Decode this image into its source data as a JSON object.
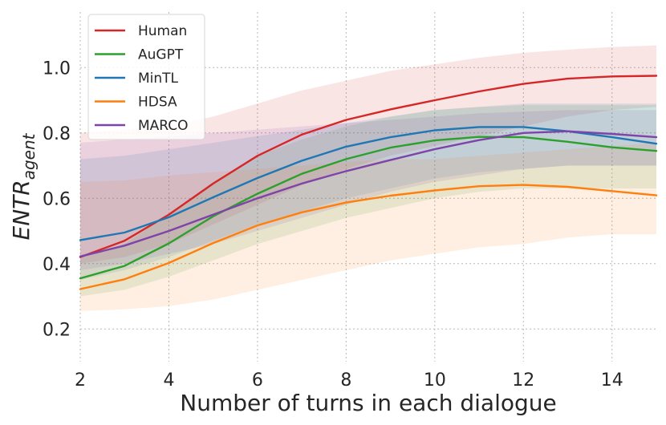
{
  "chart_data": {
    "type": "line",
    "xlabel": "Number of turns in each dialogue",
    "ylabel_main": "ENTR",
    "ylabel_sub": "agent",
    "xlim": [
      2,
      15
    ],
    "ylim": [
      0.1,
      1.17
    ],
    "x_ticks": [
      2,
      4,
      6,
      8,
      10,
      12,
      14
    ],
    "x_tick_labels": [
      "2",
      "4",
      "6",
      "8",
      "10",
      "12",
      "14"
    ],
    "y_ticks": [
      0.2,
      0.4,
      0.6,
      0.8,
      1.0
    ],
    "y_tick_labels": [
      "0.2",
      "0.4",
      "0.6",
      "0.8",
      "1.0"
    ],
    "grid": true,
    "legend_position": "top-left",
    "x": [
      2,
      3,
      4,
      5,
      6,
      7,
      8,
      9,
      10,
      11,
      12,
      13,
      14,
      15
    ],
    "series": [
      {
        "name": "Human",
        "color": "#d62728",
        "values": [
          0.42,
          0.47,
          0.55,
          0.645,
          0.73,
          0.795,
          0.84,
          0.872,
          0.9,
          0.927,
          0.95,
          0.966,
          0.973,
          0.975
        ],
        "band_lower": [
          0.4,
          0.42,
          0.46,
          0.52,
          0.58,
          0.64,
          0.69,
          0.73,
          0.76,
          0.79,
          0.82,
          0.85,
          0.87,
          0.88
        ],
        "band_upper": [
          0.8,
          0.81,
          0.82,
          0.85,
          0.89,
          0.93,
          0.96,
          0.99,
          1.01,
          1.03,
          1.045,
          1.055,
          1.063,
          1.068
        ]
      },
      {
        "name": "AuGPT",
        "color": "#2ca02c",
        "values": [
          0.355,
          0.393,
          0.462,
          0.545,
          0.614,
          0.675,
          0.72,
          0.755,
          0.777,
          0.788,
          0.787,
          0.773,
          0.756,
          0.745
        ],
        "band_lower": [
          0.3,
          0.32,
          0.36,
          0.41,
          0.46,
          0.5,
          0.54,
          0.57,
          0.6,
          0.62,
          0.63,
          0.63,
          0.63,
          0.63
        ],
        "band_upper": [
          0.42,
          0.46,
          0.55,
          0.65,
          0.73,
          0.78,
          0.82,
          0.85,
          0.87,
          0.88,
          0.885,
          0.885,
          0.885,
          0.885
        ]
      },
      {
        "name": "MinTL",
        "color": "#1f77b4",
        "values": [
          0.472,
          0.495,
          0.542,
          0.603,
          0.662,
          0.715,
          0.758,
          0.787,
          0.808,
          0.818,
          0.818,
          0.805,
          0.787,
          0.767
        ],
        "band_lower": [
          0.35,
          0.38,
          0.42,
          0.47,
          0.52,
          0.56,
          0.6,
          0.63,
          0.66,
          0.68,
          0.69,
          0.7,
          0.7,
          0.7
        ],
        "band_upper": [
          0.72,
          0.73,
          0.75,
          0.77,
          0.79,
          0.81,
          0.83,
          0.85,
          0.87,
          0.88,
          0.89,
          0.89,
          0.89,
          0.89
        ]
      },
      {
        "name": "HDSA",
        "color": "#ff7f0e",
        "values": [
          0.322,
          0.352,
          0.402,
          0.463,
          0.517,
          0.557,
          0.587,
          0.608,
          0.624,
          0.637,
          0.641,
          0.635,
          0.622,
          0.609
        ],
        "band_lower": [
          0.255,
          0.26,
          0.27,
          0.29,
          0.32,
          0.35,
          0.38,
          0.41,
          0.43,
          0.45,
          0.46,
          0.48,
          0.49,
          0.49
        ],
        "band_upper": [
          0.65,
          0.655,
          0.67,
          0.68,
          0.69,
          0.7,
          0.71,
          0.72,
          0.72,
          0.73,
          0.74,
          0.75,
          0.76,
          0.77
        ]
      },
      {
        "name": "MARCO",
        "color": "#7e44a7",
        "values": [
          0.422,
          0.455,
          0.5,
          0.55,
          0.6,
          0.645,
          0.683,
          0.717,
          0.75,
          0.778,
          0.8,
          0.805,
          0.797,
          0.787
        ],
        "band_lower": [
          0.38,
          0.4,
          0.43,
          0.46,
          0.5,
          0.54,
          0.58,
          0.62,
          0.65,
          0.67,
          0.69,
          0.7,
          0.7,
          0.7
        ],
        "band_upper": [
          0.77,
          0.78,
          0.79,
          0.8,
          0.81,
          0.82,
          0.83,
          0.84,
          0.85,
          0.86,
          0.865,
          0.87,
          0.87,
          0.87
        ]
      }
    ]
  }
}
